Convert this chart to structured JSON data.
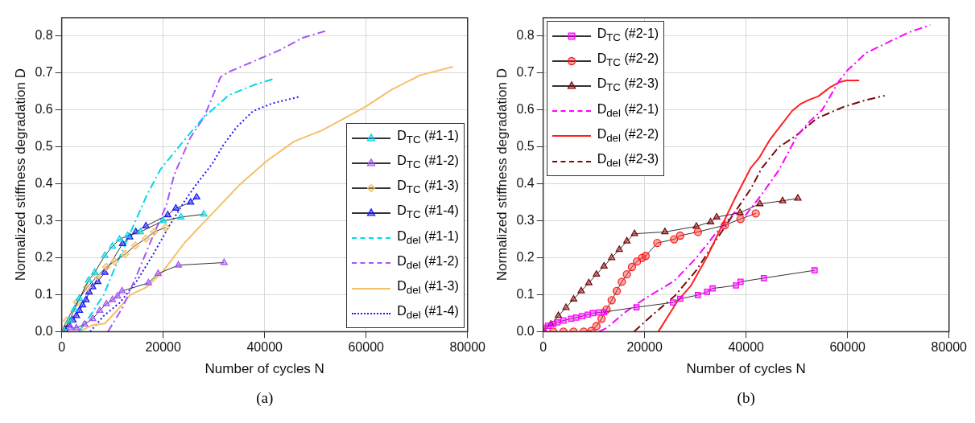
{
  "chart_data": [
    {
      "type": "line",
      "xlabel": "Number of cycles N",
      "ylabel": "Normalized stiffness degradation D",
      "xlim": [
        0,
        80000
      ],
      "ylim": [
        0,
        0.85
      ],
      "xticks": [
        0,
        20000,
        40000,
        60000,
        80000
      ],
      "yticks": [
        {
          "value": 0,
          "label": "0.0"
        },
        0.1,
        0.2,
        0.3,
        0.4,
        0.5,
        0.6,
        0.7,
        0.8
      ],
      "grid": true,
      "legend": "bottom right",
      "annotations": [
        "(a)"
      ],
      "series": [
        {
          "name": "D$_{TC}$ (#1-1)",
          "color": "#00d8e8",
          "marker": "triangle",
          "line_style": "solid",
          "x": [
            500,
            1500,
            2500,
            3500,
            5300,
            6500,
            8500,
            10000,
            11400,
            13000,
            15500,
            20000,
            23500,
            28000
          ],
          "values": [
            0,
            0.03,
            0.06,
            0.09,
            0.139,
            0.16,
            0.206,
            0.231,
            0.25,
            0.26,
            0.27,
            0.3,
            0.31,
            0.318
          ]
        },
        {
          "name": "D$_{TC}$ (#1-2)",
          "color": "#a855f7",
          "marker": "triangle",
          "line_style": "solid",
          "x": [
            1800,
            2900,
            4500,
            6100,
            7500,
            8800,
            10000,
            11000,
            11900,
            17100,
            19000,
            23000,
            32000
          ],
          "values": [
            0.01,
            0.01,
            0.02,
            0.035,
            0.057,
            0.075,
            0.086,
            0.096,
            0.11,
            0.132,
            0.157,
            0.18,
            0.187
          ]
        },
        {
          "name": "D$_{TC}$ (#1-3)",
          "color": "#f5bf6a",
          "marker": "diamond",
          "line_style": "solid",
          "x": [
            200,
            1000,
            3000,
            5000,
            7000,
            8800,
            10400,
            12500,
            14500,
            16600,
            18200,
            20500
          ],
          "values": [
            0.005,
            0.03,
            0.08,
            0.12,
            0.15,
            0.175,
            0.19,
            0.21,
            0.233,
            0.252,
            0.27,
            0.282
          ]
        },
        {
          "name": "D$_{TC}$ (#1-4)",
          "color": "#1a1aff",
          "marker": "triangle",
          "line_style": "solid",
          "x": [
            650,
            1450,
            2200,
            2900,
            3500,
            4100,
            4800,
            5400,
            6100,
            7100,
            8500,
            12000,
            13400,
            14600,
            16600,
            20900,
            22500,
            25400,
            26600
          ],
          "values": [
            0.006,
            0.018,
            0.031,
            0.043,
            0.057,
            0.072,
            0.086,
            0.107,
            0.121,
            0.135,
            0.16,
            0.238,
            0.256,
            0.27,
            0.286,
            0.316,
            0.334,
            0.35,
            0.364
          ]
        },
        {
          "name": "D$_{del}$ (#1-1)",
          "color": "#00d8e8",
          "marker": "none",
          "line_style": "dashed",
          "x": [
            3400,
            5600,
            8300,
            10400,
            13600,
            16800,
            19500,
            23300,
            27600,
            32900,
            37700,
            41900
          ],
          "values": [
            0,
            0.043,
            0.1,
            0.17,
            0.27,
            0.37,
            0.44,
            0.504,
            0.575,
            0.64,
            0.667,
            0.685
          ]
        },
        {
          "name": "D$_{del}$ (#1-2)",
          "color": "#a855f7",
          "marker": "none",
          "line_style": "dashed",
          "x": [
            9100,
            12000,
            14700,
            17900,
            20600,
            22200,
            25400,
            28100,
            31300,
            32900,
            37700,
            43100,
            47400,
            52000
          ],
          "values": [
            0,
            0.065,
            0.15,
            0.256,
            0.341,
            0.426,
            0.526,
            0.582,
            0.689,
            0.703,
            0.731,
            0.763,
            0.795,
            0.814
          ]
        },
        {
          "name": "D$_{del}$ (#1-3)",
          "color": "#f5bf6a",
          "marker": "none",
          "line_style": "solid",
          "x": [
            3400,
            6100,
            8500,
            10900,
            13600,
            16800,
            20000,
            24300,
            29700,
            35100,
            40400,
            45800,
            51300,
            54400,
            59900,
            65000,
            70600,
            77100
          ],
          "values": [
            0,
            0.018,
            0.022,
            0.057,
            0.1,
            0.121,
            0.164,
            0.242,
            0.32,
            0.398,
            0.462,
            0.515,
            0.545,
            0.568,
            0.609,
            0.655,
            0.694,
            0.717
          ]
        },
        {
          "name": "D$_{del}$ (#1-4)",
          "color": "#1a1aff",
          "marker": "none",
          "line_style": "dotted",
          "x": [
            5600,
            8300,
            11500,
            14700,
            17900,
            21100,
            24300,
            26500,
            29700,
            31800,
            34500,
            37700,
            41500,
            47100
          ],
          "values": [
            0,
            0.043,
            0.079,
            0.135,
            0.206,
            0.284,
            0.355,
            0.398,
            0.455,
            0.504,
            0.554,
            0.597,
            0.618,
            0.637
          ]
        }
      ]
    },
    {
      "type": "line",
      "xlabel": "Number of cycles N",
      "ylabel": "Normalized stiffness degradation D",
      "xlim": [
        0,
        80000
      ],
      "ylim": [
        0,
        0.85
      ],
      "xticks": [
        0,
        20000,
        40000,
        60000,
        80000
      ],
      "yticks": [
        {
          "value": 0,
          "label": "0.0"
        },
        0.1,
        0.2,
        0.3,
        0.4,
        0.5,
        0.6,
        0.7,
        0.8
      ],
      "grid": true,
      "legend": "top left",
      "annotations": [
        "(b)"
      ],
      "series": [
        {
          "name": "D$_{TC}$ (#2-1)",
          "color": "#ff00ff",
          "marker": "square",
          "line_style": "solid",
          "x": [
            0,
            1000,
            2000,
            2800,
            4000,
            5500,
            6500,
            7700,
            8800,
            9800,
            11000,
            12000,
            18400,
            25600,
            27000,
            30500,
            32300,
            33400,
            38000,
            38900,
            43500,
            53500
          ],
          "values": [
            0.011,
            0.016,
            0.021,
            0.025,
            0.03,
            0.035,
            0.038,
            0.042,
            0.046,
            0.05,
            0.052,
            0.053,
            0.066,
            0.079,
            0.089,
            0.099,
            0.108,
            0.117,
            0.125,
            0.135,
            0.145,
            0.166
          ]
        },
        {
          "name": "D$_{TC}$ (#2-2)",
          "color": "#ff2020",
          "marker": "circle",
          "line_style": "solid",
          "x": [
            0,
            2000,
            4000,
            6000,
            8000,
            9500,
            10500,
            11500,
            12500,
            13500,
            14500,
            15500,
            16500,
            17500,
            18500,
            19500,
            20200,
            22500,
            25800,
            27000,
            30500,
            35800,
            38900,
            41900
          ],
          "values": [
            0,
            0,
            0,
            0,
            0,
            0.002,
            0.015,
            0.035,
            0.06,
            0.085,
            0.11,
            0.135,
            0.155,
            0.175,
            0.19,
            0.2,
            0.205,
            0.24,
            0.25,
            0.26,
            0.27,
            0.288,
            0.305,
            0.32
          ]
        },
        {
          "name": "D$_{TC}$ (#2-3)",
          "color": "#7a0a0a",
          "marker": "triangle",
          "line_style": "solid",
          "x": [
            0,
            1500,
            3000,
            4500,
            6000,
            7500,
            9000,
            10500,
            12000,
            13500,
            15000,
            16500,
            18000,
            24000,
            30200,
            33000,
            34200,
            38800,
            42700,
            47200,
            50200
          ],
          "values": [
            0,
            0.02,
            0.043,
            0.065,
            0.088,
            0.11,
            0.132,
            0.155,
            0.177,
            0.2,
            0.222,
            0.245,
            0.265,
            0.27,
            0.285,
            0.297,
            0.31,
            0.322,
            0.346,
            0.354,
            0.361
          ]
        },
        {
          "name": "D$_{del}$ (#2-1)",
          "color": "#ff00ff",
          "marker": "none",
          "line_style": "dashed",
          "x": [
            11000,
            12500,
            16200,
            20000,
            25900,
            30200,
            34000,
            37700,
            39900,
            43100,
            46400,
            50100,
            52600,
            55000,
            58200,
            59800,
            63600,
            67900,
            72200,
            76300
          ],
          "values": [
            0,
            0.01,
            0.053,
            0.089,
            0.138,
            0.2,
            0.266,
            0.322,
            0.315,
            0.372,
            0.436,
            0.531,
            0.57,
            0.6,
            0.676,
            0.705,
            0.754,
            0.783,
            0.811,
            0.83
          ]
        },
        {
          "name": "D$_{del}$ (#2-2)",
          "color": "#ff2020",
          "marker": "none",
          "line_style": "solid",
          "x": [
            22700,
            24800,
            26400,
            29100,
            32300,
            35000,
            37700,
            40900,
            42600,
            44700,
            46900,
            49100,
            50700,
            52300,
            54200,
            56600,
            58500,
            59800,
            62300
          ],
          "values": [
            0,
            0.046,
            0.081,
            0.124,
            0.202,
            0.28,
            0.358,
            0.443,
            0.471,
            0.52,
            0.559,
            0.598,
            0.616,
            0.627,
            0.637,
            0.662,
            0.676,
            0.68,
            0.68
          ]
        },
        {
          "name": "D$_{del}$ (#2-3)",
          "color": "#7a0a0a",
          "marker": "none",
          "line_style": "dashed",
          "x": [
            17900,
            21600,
            25900,
            30200,
            33900,
            37700,
            40900,
            43100,
            46400,
            49600,
            53900,
            59300,
            63600,
            67300
          ],
          "values": [
            0,
            0.046,
            0.096,
            0.166,
            0.244,
            0.322,
            0.386,
            0.443,
            0.499,
            0.528,
            0.577,
            0.609,
            0.627,
            0.639
          ]
        }
      ]
    }
  ]
}
